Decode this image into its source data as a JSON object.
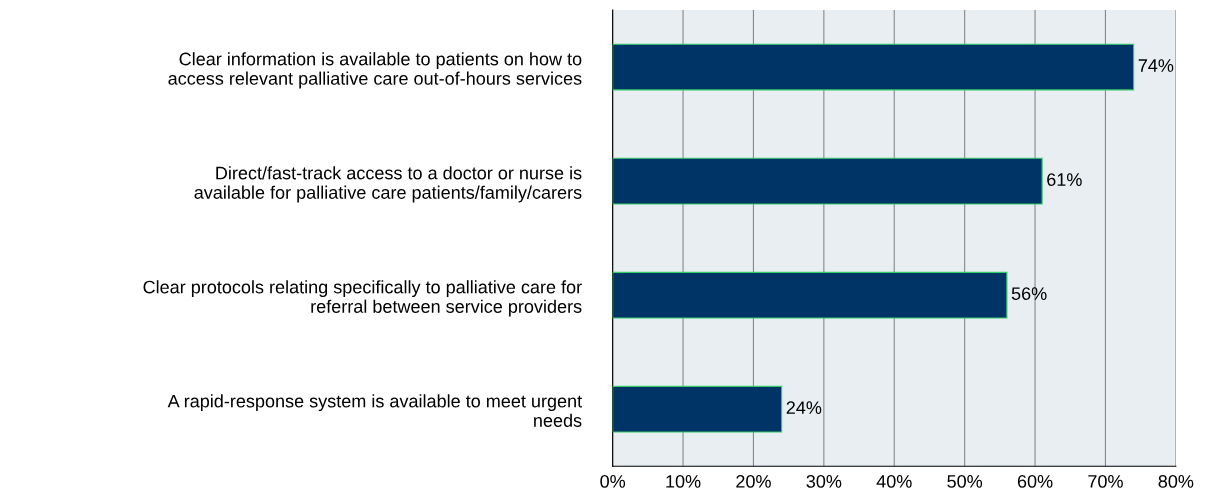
{
  "chart_data": {
    "type": "bar",
    "orientation": "horizontal",
    "categories": [
      "Clear information is available to patients on how to\naccess relevant palliative care out-of-hours services",
      "Direct/fast-track access to a doctor or nurse is\navailable for palliative care patients/family/carers",
      "Clear protocols relating specifically to palliative care for\nreferral between service providers",
      "A rapid-response system is available to meet urgent\nneeds"
    ],
    "values": [
      74,
      61,
      56,
      24
    ],
    "value_labels": [
      "74%",
      "61%",
      "56%",
      "24%"
    ],
    "color": "#003366",
    "xlim": [
      0,
      80
    ],
    "xticks": [
      {
        "value": 0,
        "label": "0%"
      },
      {
        "value": 10,
        "label": "10%"
      },
      {
        "value": 20,
        "label": "20%"
      },
      {
        "value": 30,
        "label": "30%"
      },
      {
        "value": 40,
        "label": "40%"
      },
      {
        "value": 50,
        "label": "50%"
      },
      {
        "value": 60,
        "label": "60%"
      },
      {
        "value": 70,
        "label": "70%"
      },
      {
        "value": 80,
        "label": "80%"
      }
    ],
    "grid": "x"
  }
}
